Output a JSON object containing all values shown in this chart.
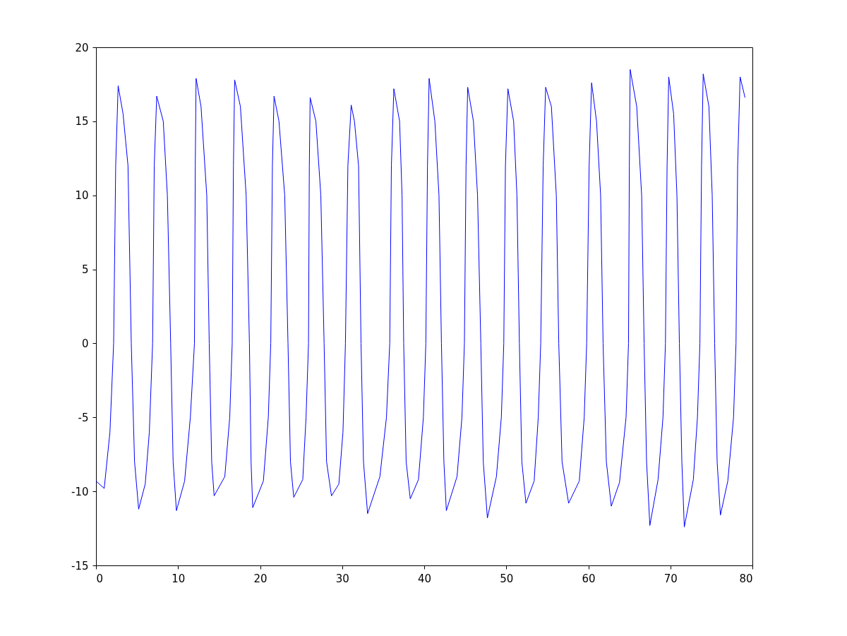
{
  "chart_data": {
    "type": "line",
    "xlim": [
      0,
      80
    ],
    "xticks": [
      0,
      10,
      20,
      30,
      40,
      50,
      60,
      70,
      80
    ],
    "ylim": [
      -15,
      20
    ],
    "yticks": [
      -15,
      -10,
      -5,
      0,
      5,
      10,
      15,
      20
    ],
    "grid": false,
    "marker": "none",
    "line_style": "solid",
    "x": [
      0,
      1,
      1.7,
      2.15,
      2.4,
      2.7,
      3.3,
      3.9,
      4.3,
      4.7,
      5.2,
      6.0,
      6.5,
      6.9,
      7.1,
      7.4,
      8.2,
      8.7,
      9.1,
      9.4,
      9.8,
      10.8,
      11.5,
      12.0,
      12.1,
      12.2,
      12.8,
      13.5,
      13.8,
      14.1,
      14.4,
      15.7,
      16.3,
      16.6,
      16.75,
      16.9,
      17.6,
      18.3,
      18.7,
      18.9,
      19.1,
      20.4,
      21.0,
      21.3,
      21.5,
      21.7,
      22.3,
      23.0,
      23.4,
      23.7,
      24.1,
      25.2,
      25.6,
      25.9,
      26.0,
      26.1,
      26.8,
      27.4,
      27.8,
      28.1,
      28.7,
      29.6,
      30.1,
      30.4,
      30.7,
      31.1,
      31.5,
      32.0,
      32.3,
      32.6,
      33.1,
      34.6,
      35.4,
      35.8,
      36.0,
      36.3,
      37.0,
      37.3,
      37.5,
      37.8,
      38.3,
      39.3,
      39.9,
      40.2,
      40.4,
      40.6,
      41.3,
      41.8,
      42.1,
      42.4,
      42.7,
      44.0,
      44.6,
      44.9,
      45.1,
      45.3,
      46.0,
      46.5,
      46.9,
      47.2,
      47.7,
      48.8,
      49.4,
      49.7,
      49.9,
      50.2,
      50.9,
      51.3,
      51.6,
      51.9,
      52.4,
      53.4,
      53.9,
      54.2,
      54.5,
      54.8,
      55.5,
      56.1,
      56.4,
      56.8,
      57.6,
      58.9,
      59.5,
      59.8,
      60.1,
      60.4,
      61.0,
      61.5,
      61.8,
      62.2,
      62.8,
      63.8,
      64.6,
      64.9,
      65.0,
      65.1,
      65.9,
      66.5,
      66.8,
      67.1,
      67.5,
      68.5,
      69.1,
      69.4,
      69.6,
      69.8,
      70.4,
      70.8,
      71.1,
      71.4,
      71.7,
      72.8,
      73.3,
      73.6,
      73.8,
      74.0,
      74.7,
      75.1,
      75.4,
      75.7,
      76.1,
      77.0,
      77.7,
      78.0,
      78.2,
      78.5,
      79.1
    ],
    "series": [
      {
        "color": "#0000ff",
        "values": [
          -9.3,
          -9.8,
          -6,
          0,
          12,
          17.4,
          15.5,
          12,
          0,
          -8,
          -11.2,
          -9.5,
          -6,
          0,
          12,
          16.7,
          15,
          10,
          0,
          -8,
          -11.3,
          -9.3,
          -5,
          0,
          12,
          17.9,
          16,
          10,
          0,
          -8,
          -10.3,
          -9,
          -5,
          0,
          12,
          17.8,
          16,
          10,
          0,
          -8,
          -11.1,
          -9.3,
          -5,
          0,
          12,
          16.7,
          15,
          10,
          0,
          -8,
          -10.4,
          -9.2,
          -5,
          0,
          12,
          16.6,
          15,
          10,
          0,
          -8,
          -10.3,
          -9.5,
          -6,
          0,
          12,
          16.1,
          15,
          12,
          0,
          -8,
          -11.5,
          -9,
          -5,
          0,
          12,
          17.2,
          15,
          10,
          0,
          -8,
          -10.5,
          -9.2,
          -5,
          0,
          12,
          17.9,
          15,
          10,
          0,
          -8,
          -11.3,
          -9,
          -5,
          0,
          12,
          17.3,
          15,
          10,
          0,
          -8,
          -11.8,
          -9,
          -5,
          0,
          12,
          17.2,
          15,
          10,
          0,
          -8,
          -10.8,
          -9.3,
          -5,
          0,
          12,
          17.3,
          16,
          10,
          0,
          -8,
          -10.8,
          -9.3,
          -5,
          0,
          12,
          17.6,
          15,
          10,
          0,
          -8,
          -11.0,
          -9.4,
          -5,
          0,
          12,
          18.5,
          16,
          10,
          0,
          -8,
          -12.3,
          -9.2,
          -5,
          0,
          12,
          18.0,
          15.5,
          10,
          0,
          -8,
          -12.4,
          -9.2,
          -5,
          0,
          12,
          18.2,
          16,
          10,
          0,
          -8,
          -11.6,
          -9.3,
          -5,
          0,
          12,
          18.0,
          16.6
        ]
      }
    ]
  }
}
